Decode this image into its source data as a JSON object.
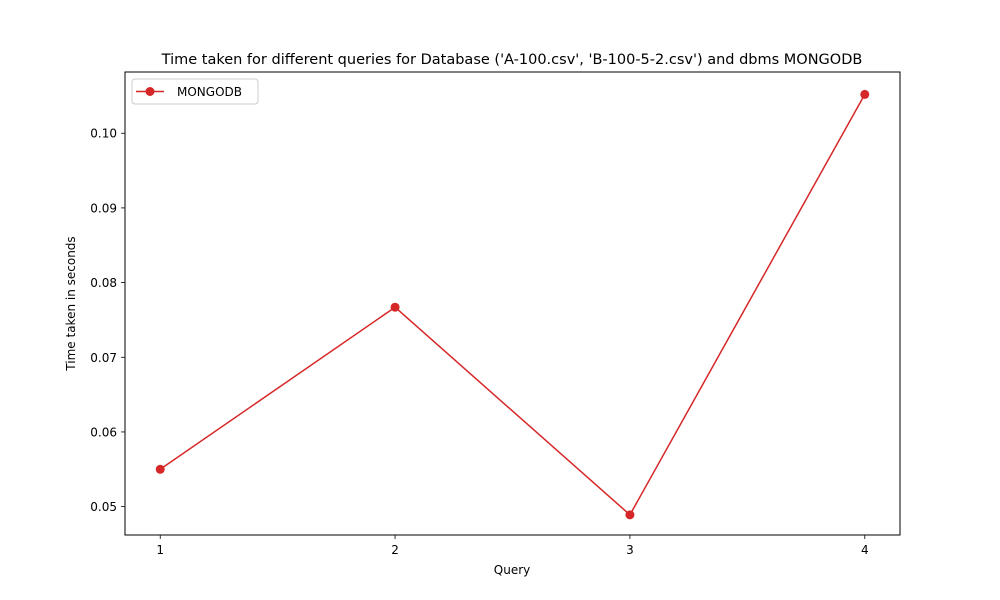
{
  "chart_data": {
    "type": "line",
    "title": "Time taken for different queries for Database ('A-100.csv', 'B-100-5-2.csv') and dbms MONGODB",
    "xlabel": "Query",
    "ylabel": "Time taken in seconds",
    "x": [
      1,
      2,
      3,
      4
    ],
    "x_ticks": [
      "1",
      "2",
      "3",
      "4"
    ],
    "y_ticks": [
      "0.05",
      "0.06",
      "0.07",
      "0.08",
      "0.09",
      "0.10"
    ],
    "xlim": [
      0.85,
      4.15
    ],
    "ylim": [
      0.0462,
      0.1082
    ],
    "grid": false,
    "legend_position": "top-left",
    "series": [
      {
        "name": "MONGODB",
        "color": "#d62728",
        "marker": "circle",
        "values": [
          0.055,
          0.0767,
          0.0489,
          0.1052
        ]
      }
    ]
  }
}
